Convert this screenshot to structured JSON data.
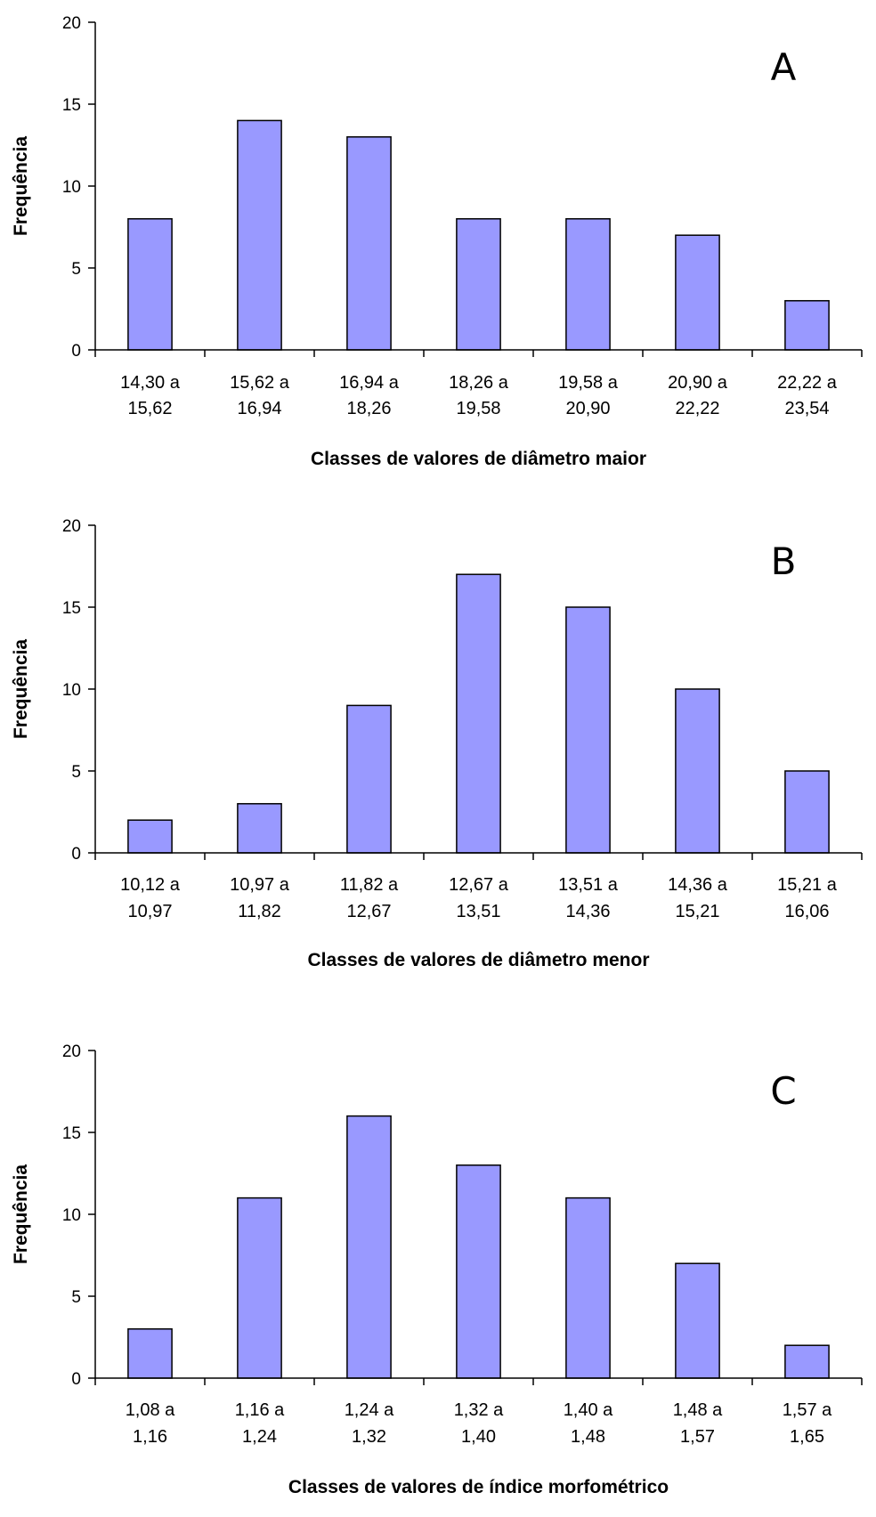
{
  "chart_data": [
    {
      "type": "bar",
      "panel_label": "A",
      "ylabel": "Frequência",
      "xlabel": "Classes de valores de diâmetro maior",
      "ylim": [
        0,
        20
      ],
      "yticks": [
        "0",
        "5",
        "10",
        "15",
        "20"
      ],
      "grid": false,
      "bar_color": "#9999FF",
      "categories": [
        [
          "14,30 a",
          "15,62"
        ],
        [
          "15,62 a",
          "16,94"
        ],
        [
          "16,94 a",
          "18,26"
        ],
        [
          "18,26 a",
          "19,58"
        ],
        [
          "19,58 a",
          "20,90"
        ],
        [
          "20,90 a",
          "22,22"
        ],
        [
          "22,22 a",
          "23,54"
        ]
      ],
      "values": [
        8,
        14,
        13,
        8,
        8,
        7,
        3
      ]
    },
    {
      "type": "bar",
      "panel_label": "B",
      "ylabel": "Frequência",
      "xlabel": "Classes de valores de diâmetro menor",
      "ylim": [
        0,
        20
      ],
      "yticks": [
        "0",
        "5",
        "10",
        "15",
        "20"
      ],
      "grid": false,
      "bar_color": "#9999FF",
      "categories": [
        [
          "10,12 a",
          "10,97"
        ],
        [
          "10,97 a",
          "11,82"
        ],
        [
          "11,82 a",
          "12,67"
        ],
        [
          "12,67 a",
          "13,51"
        ],
        [
          "13,51 a",
          "14,36"
        ],
        [
          "14,36 a",
          "15,21"
        ],
        [
          "15,21 a",
          "16,06"
        ]
      ],
      "values": [
        2,
        3,
        9,
        17,
        15,
        10,
        5
      ]
    },
    {
      "type": "bar",
      "panel_label": "C",
      "ylabel": "Frequência",
      "xlabel": "Classes de valores de índice morfométrico",
      "ylim": [
        0,
        20
      ],
      "yticks": [
        "0",
        "5",
        "10",
        "15",
        "20"
      ],
      "grid": false,
      "bar_color": "#9999FF",
      "categories": [
        [
          "1,08 a",
          "1,16"
        ],
        [
          "1,16 a",
          "1,24"
        ],
        [
          "1,24 a",
          "1,32"
        ],
        [
          "1,32 a",
          "1,40"
        ],
        [
          "1,40 a",
          "1,48"
        ],
        [
          "1,48 a",
          "1,57"
        ],
        [
          "1,57 a",
          "1,65"
        ]
      ],
      "values": [
        3,
        11,
        16,
        13,
        11,
        7,
        2
      ]
    }
  ]
}
